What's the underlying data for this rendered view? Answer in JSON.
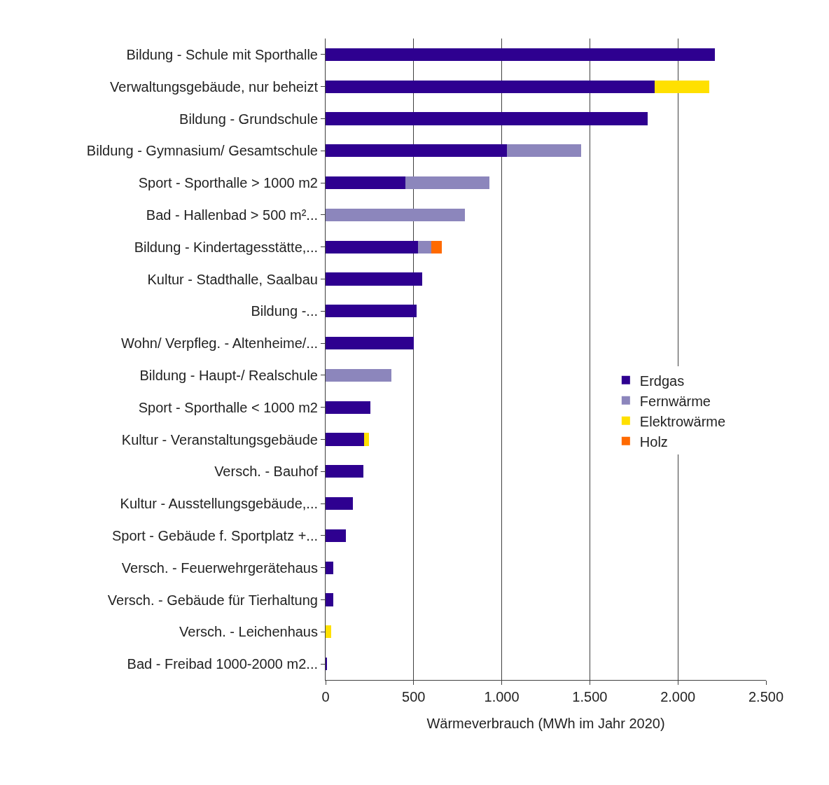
{
  "chart_data": {
    "type": "bar",
    "orientation": "horizontal",
    "stacked": true,
    "categories": [
      "Bildung - Schule mit Sporthalle",
      "Verwaltungsgebäude, nur beheizt",
      "Bildung - Grundschule",
      "Bildung - Gymnasium/ Gesamtschule",
      "Sport - Sporthalle > 1000 m2",
      "Bad - Hallenbad > 500 m²...",
      "Bildung - Kindertagesstätte,...",
      "Kultur - Stadthalle, Saalbau",
      "Bildung -...",
      "Wohn/ Verpfleg. - Altenheime/...",
      "Bildung - Haupt-/ Realschule",
      "Sport - Sporthalle < 1000 m2",
      "Kultur - Veranstaltungsgebäude",
      "Versch. - Bauhof",
      "Kultur - Ausstellungsgebäude,...",
      "Sport - Gebäude f. Sportplatz +...",
      "Versch. - Feuerwehrgerätehaus",
      "Versch. - Gebäude für Tierhaltung",
      "Versch. - Leichenhaus",
      "Bad - Freibad 1000-2000 m2..."
    ],
    "series": [
      {
        "name": "Erdgas",
        "color": "#2e0090",
        "values": [
          2210,
          1870,
          1830,
          1030,
          455,
          null,
          525,
          550,
          515,
          500,
          null,
          255,
          220,
          215,
          155,
          115,
          45,
          45,
          null,
          5
        ]
      },
      {
        "name": "Fernwärme",
        "color": "#8c86bc",
        "values": [
          null,
          null,
          null,
          420,
          475,
          790,
          75,
          null,
          null,
          null,
          375,
          null,
          null,
          null,
          null,
          null,
          null,
          null,
          null,
          null
        ]
      },
      {
        "name": "Elektrowärme",
        "color": "#ffe000",
        "values": [
          null,
          310,
          null,
          null,
          null,
          null,
          null,
          null,
          null,
          null,
          null,
          null,
          25,
          null,
          null,
          null,
          null,
          null,
          30,
          null
        ]
      },
      {
        "name": "Holz",
        "color": "#ff6a00",
        "values": [
          null,
          null,
          null,
          null,
          null,
          null,
          60,
          null,
          null,
          null,
          null,
          null,
          null,
          null,
          null,
          null,
          null,
          null,
          null,
          null
        ]
      }
    ],
    "xlabel": "Wärmeverbrauch (MWh im Jahr 2020)",
    "xlim": [
      0,
      2500
    ],
    "xticks": [
      0,
      500,
      {
        "value": 1000,
        "label": "1.000"
      },
      {
        "value": 1500,
        "label": "1.500"
      },
      {
        "value": 2000,
        "label": "2.000"
      },
      {
        "value": 2500,
        "label": "2.500"
      }
    ],
    "grid": "x",
    "legend": "right"
  }
}
